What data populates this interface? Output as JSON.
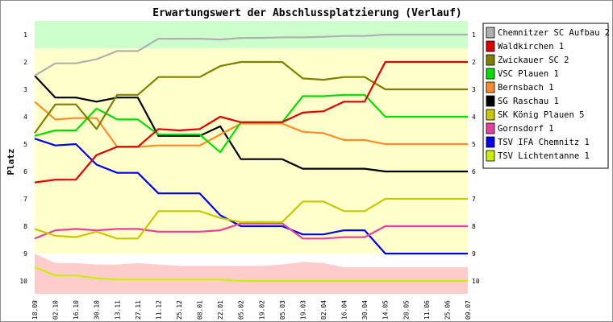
{
  "chart_data": {
    "type": "line",
    "title": "Erwartungswert der Abschlussplatzierung (Verlauf)",
    "ylabel": "Platz",
    "xlabel": "",
    "ylim": [
      1,
      10
    ],
    "y_inverted": true,
    "y_ticks": [
      "1",
      "2",
      "3",
      "4",
      "5",
      "6",
      "7",
      "8",
      "9",
      "10"
    ],
    "grid": false,
    "legend_position": "right",
    "categories": [
      "18.09",
      "02.10",
      "16.10",
      "30.10",
      "13.11",
      "27.11",
      "11.12",
      "25.12",
      "08.01",
      "22.01",
      "05.02",
      "19.02",
      "05.03",
      "19.03",
      "02.04",
      "16.04",
      "30.04",
      "14.05",
      "28.05",
      "11.06",
      "25.06",
      "09.07"
    ],
    "zones": [
      {
        "name": "top",
        "color": "#ccffcc",
        "from": 0.5,
        "to": 1.5
      },
      {
        "name": "middle",
        "color": "#ffffcc",
        "from": 1.5,
        "to": 9.0
      },
      {
        "name": "bottom",
        "color": "#ffcccc",
        "upper_edge": [
          9.0,
          9.35,
          9.35,
          9.4,
          9.4,
          9.35,
          9.4,
          9.45,
          9.45,
          9.45,
          9.45,
          9.45,
          9.4,
          9.3,
          9.35,
          9.5,
          9.5,
          9.5,
          9.5,
          9.5,
          9.5,
          9.5
        ],
        "to": 10.5
      }
    ],
    "series": [
      {
        "name": "Chemnitzer SC Aufbau 2",
        "color": "#b0b0b0",
        "values": [
          2.5,
          2.05,
          2.05,
          1.9,
          1.6,
          1.6,
          1.15,
          1.15,
          1.15,
          1.18,
          1.12,
          1.12,
          1.1,
          1.1,
          1.08,
          1.05,
          1.05,
          1.0,
          1.0,
          1.0,
          1.0,
          1.0
        ]
      },
      {
        "name": "Waldkirchen 1",
        "color": "#e00000",
        "values": [
          6.4,
          6.3,
          6.3,
          5.4,
          5.1,
          5.1,
          4.45,
          4.5,
          4.45,
          4.0,
          4.2,
          4.2,
          4.2,
          3.85,
          3.8,
          3.45,
          3.45,
          2.0,
          2.0,
          2.0,
          2.0,
          2.0
        ]
      },
      {
        "name": "Zwickauer SC 2",
        "color": "#808000",
        "values": [
          4.6,
          3.55,
          3.55,
          4.45,
          3.2,
          3.2,
          2.55,
          2.55,
          2.55,
          2.15,
          2.0,
          2.0,
          2.0,
          2.6,
          2.65,
          2.55,
          2.55,
          3.0,
          3.0,
          3.0,
          3.0,
          3.0
        ]
      },
      {
        "name": "VSC Plauen 1",
        "color": "#00e000",
        "values": [
          4.7,
          4.5,
          4.5,
          3.7,
          4.1,
          4.1,
          4.65,
          4.65,
          4.65,
          5.3,
          4.2,
          4.2,
          4.2,
          3.25,
          3.25,
          3.2,
          3.2,
          4.0,
          4.0,
          4.0,
          4.0,
          4.0
        ]
      },
      {
        "name": "Bernsbach 1",
        "color": "#ff8c28",
        "values": [
          3.45,
          4.1,
          4.05,
          4.05,
          5.1,
          5.1,
          5.05,
          5.05,
          5.05,
          4.65,
          4.25,
          4.25,
          4.25,
          4.55,
          4.6,
          4.85,
          4.85,
          5.0,
          5.0,
          5.0,
          5.0,
          5.0
        ]
      },
      {
        "name": "SG Raschau 1",
        "color": "#000000",
        "values": [
          2.5,
          3.3,
          3.3,
          3.45,
          3.3,
          3.3,
          4.7,
          4.7,
          4.7,
          4.35,
          5.55,
          5.55,
          5.55,
          5.9,
          5.9,
          5.9,
          5.9,
          6.0,
          6.0,
          6.0,
          6.0,
          6.0
        ]
      },
      {
        "name": "SK König Plauen 5",
        "color": "#c8c800",
        "values": [
          8.1,
          8.35,
          8.4,
          8.2,
          8.45,
          8.45,
          7.45,
          7.45,
          7.45,
          7.7,
          7.85,
          7.85,
          7.85,
          7.1,
          7.1,
          7.45,
          7.45,
          7.0,
          7.0,
          7.0,
          7.0,
          7.0
        ]
      },
      {
        "name": "Gornsdorf 1",
        "color": "#e8409c",
        "values": [
          8.45,
          8.15,
          8.1,
          8.15,
          8.1,
          8.1,
          8.2,
          8.2,
          8.2,
          8.15,
          7.9,
          7.9,
          7.9,
          8.45,
          8.45,
          8.4,
          8.4,
          8.0,
          8.0,
          8.0,
          8.0,
          8.0
        ]
      },
      {
        "name": "TSV IFA Chemnitz 1",
        "color": "#0000ee",
        "values": [
          4.8,
          5.05,
          5.0,
          5.75,
          6.05,
          6.05,
          6.8,
          6.8,
          6.8,
          7.6,
          8.0,
          8.0,
          8.0,
          8.3,
          8.3,
          8.15,
          8.15,
          9.0,
          9.0,
          9.0,
          9.0,
          9.0
        ]
      },
      {
        "name": "TSV Lichtentanne 1",
        "color": "#c8f000",
        "values": [
          9.5,
          9.8,
          9.8,
          9.9,
          9.95,
          9.95,
          9.95,
          9.95,
          9.95,
          9.95,
          10.0,
          10.0,
          10.0,
          10.0,
          10.0,
          10.0,
          10.0,
          10.0,
          10.0,
          10.0,
          10.0,
          10.0
        ]
      }
    ]
  }
}
